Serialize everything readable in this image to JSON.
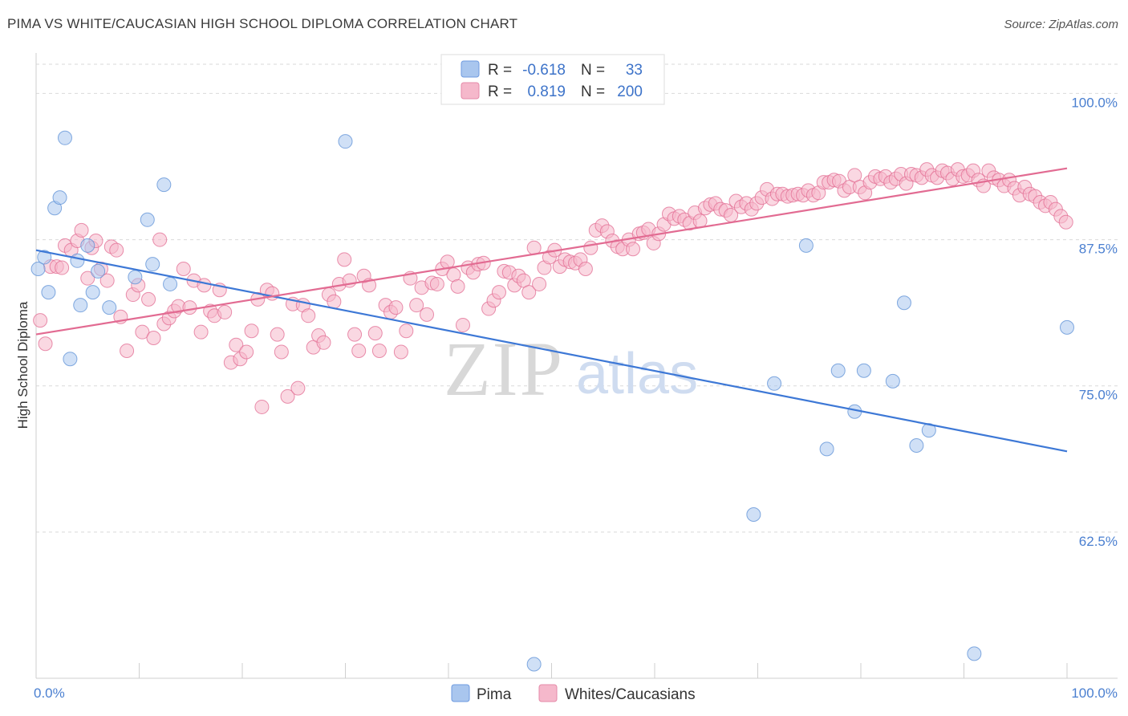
{
  "header": {
    "title": "PIMA VS WHITE/CAUCASIAN HIGH SCHOOL DIPLOMA CORRELATION CHART",
    "source": "Source: ZipAtlas.com"
  },
  "watermark": {
    "zip": "ZIP",
    "atlas": "atlas"
  },
  "legend_top": {
    "rows": [
      {
        "r_label": "R =",
        "r_value": "-0.618",
        "n_label": "N =",
        "n_value": "33",
        "color": "#a9c6ee"
      },
      {
        "r_label": "R =",
        "r_value": "0.819",
        "n_label": "N =",
        "n_value": "200",
        "color": "#f5b8cb"
      }
    ]
  },
  "legend_bottom": {
    "items": [
      {
        "label": "Pima",
        "color": "#a9c6ee"
      },
      {
        "label": "Whites/Caucasians",
        "color": "#f5b8cb"
      }
    ]
  },
  "chart_data": {
    "type": "scatter",
    "title": "PIMA VS WHITE/CAUCASIAN HIGH SCHOOL DIPLOMA CORRELATION CHART",
    "xlabel": "",
    "ylabel": "High School Diploma",
    "xlim": [
      0,
      100
    ],
    "ylim": [
      50,
      102.5
    ],
    "x_tick_labels": [
      "0.0%",
      "100.0%"
    ],
    "y_ticks": [
      62.5,
      75.0,
      87.5,
      100.0
    ],
    "y_tick_labels": [
      "62.5%",
      "75.0%",
      "87.5%",
      "100.0%"
    ],
    "grid": "horizontal dashed",
    "series": [
      {
        "name": "Pima",
        "color": "#5b8fd6",
        "fill": "#a9c6ee",
        "trend": {
          "x": [
            0,
            100
          ],
          "y": [
            86.6,
            69.4
          ]
        },
        "points": [
          [
            0.2,
            85.0
          ],
          [
            0.8,
            86.0
          ],
          [
            1.2,
            83.0
          ],
          [
            1.8,
            90.2
          ],
          [
            2.3,
            91.1
          ],
          [
            2.8,
            96.2
          ],
          [
            3.3,
            77.3
          ],
          [
            4.0,
            85.7
          ],
          [
            4.3,
            81.9
          ],
          [
            5.0,
            87.0
          ],
          [
            5.5,
            83.0
          ],
          [
            6.0,
            84.8
          ],
          [
            7.1,
            81.7
          ],
          [
            9.6,
            84.3
          ],
          [
            10.8,
            89.2
          ],
          [
            11.3,
            85.4
          ],
          [
            12.4,
            92.2
          ],
          [
            13.0,
            83.7
          ],
          [
            30.0,
            95.9
          ],
          [
            48.3,
            51.2
          ],
          [
            69.6,
            64.0
          ],
          [
            71.6,
            75.2
          ],
          [
            74.7,
            87.0
          ],
          [
            76.7,
            69.6
          ],
          [
            77.8,
            76.3
          ],
          [
            79.4,
            72.8
          ],
          [
            80.3,
            76.3
          ],
          [
            83.1,
            75.4
          ],
          [
            84.2,
            82.1
          ],
          [
            85.4,
            69.9
          ],
          [
            86.6,
            71.2
          ],
          [
            91.0,
            52.1
          ],
          [
            100.0,
            80.0
          ]
        ]
      },
      {
        "name": "Whites/Caucasians",
        "color": "#e26b92",
        "fill": "#f5b8cb",
        "trend": {
          "x": [
            0,
            100
          ],
          "y": [
            79.4,
            93.6
          ]
        },
        "points": [
          [
            0.4,
            80.6
          ],
          [
            0.9,
            78.6
          ],
          [
            1.4,
            85.2
          ],
          [
            2.0,
            85.2
          ],
          [
            2.5,
            85.1
          ],
          [
            2.8,
            87.0
          ],
          [
            3.4,
            86.6
          ],
          [
            4.0,
            87.4
          ],
          [
            4.4,
            88.3
          ],
          [
            5.0,
            84.2
          ],
          [
            5.4,
            86.8
          ],
          [
            5.8,
            87.4
          ],
          [
            6.3,
            85.0
          ],
          [
            6.9,
            84.0
          ],
          [
            7.3,
            86.9
          ],
          [
            7.8,
            86.6
          ],
          [
            8.2,
            80.9
          ],
          [
            8.8,
            78.0
          ],
          [
            9.4,
            82.8
          ],
          [
            9.9,
            83.6
          ],
          [
            10.3,
            79.6
          ],
          [
            10.9,
            82.4
          ],
          [
            11.4,
            79.1
          ],
          [
            12.0,
            87.5
          ],
          [
            12.4,
            80.3
          ],
          [
            12.9,
            80.8
          ],
          [
            13.4,
            81.4
          ],
          [
            13.8,
            81.8
          ],
          [
            14.3,
            85.0
          ],
          [
            14.9,
            81.7
          ],
          [
            15.3,
            84.0
          ],
          [
            16.0,
            79.6
          ],
          [
            16.3,
            83.6
          ],
          [
            16.9,
            81.4
          ],
          [
            17.3,
            81.0
          ],
          [
            17.8,
            83.2
          ],
          [
            18.3,
            81.3
          ],
          [
            18.9,
            77.0
          ],
          [
            19.4,
            78.5
          ],
          [
            19.8,
            77.3
          ],
          [
            20.4,
            77.9
          ],
          [
            20.9,
            79.7
          ],
          [
            21.5,
            82.4
          ],
          [
            21.9,
            73.2
          ],
          [
            22.4,
            83.2
          ],
          [
            22.9,
            82.9
          ],
          [
            23.4,
            79.4
          ],
          [
            23.8,
            77.9
          ],
          [
            24.4,
            74.1
          ],
          [
            24.9,
            82.0
          ],
          [
            25.4,
            74.8
          ],
          [
            25.9,
            81.9
          ],
          [
            26.4,
            81.0
          ],
          [
            26.9,
            78.3
          ],
          [
            27.4,
            79.3
          ],
          [
            27.9,
            78.7
          ],
          [
            28.4,
            82.8
          ],
          [
            28.9,
            82.2
          ],
          [
            29.4,
            83.7
          ],
          [
            29.9,
            85.8
          ],
          [
            30.4,
            84.0
          ],
          [
            30.9,
            79.4
          ],
          [
            31.3,
            78.0
          ],
          [
            31.8,
            84.4
          ],
          [
            32.3,
            83.6
          ],
          [
            32.9,
            79.5
          ],
          [
            33.3,
            78.0
          ],
          [
            33.9,
            81.9
          ],
          [
            34.4,
            81.3
          ],
          [
            34.9,
            81.7
          ],
          [
            35.4,
            77.9
          ],
          [
            35.9,
            79.7
          ],
          [
            36.3,
            84.2
          ],
          [
            36.9,
            81.9
          ],
          [
            37.4,
            83.4
          ],
          [
            37.9,
            81.1
          ],
          [
            38.4,
            83.8
          ],
          [
            38.9,
            83.7
          ],
          [
            39.4,
            85.0
          ],
          [
            39.9,
            85.6
          ],
          [
            40.5,
            84.5
          ],
          [
            40.9,
            83.5
          ],
          [
            41.4,
            80.2
          ],
          [
            41.9,
            85.1
          ],
          [
            42.4,
            84.7
          ],
          [
            42.9,
            85.4
          ],
          [
            43.4,
            85.5
          ],
          [
            43.9,
            81.6
          ],
          [
            44.4,
            82.3
          ],
          [
            44.9,
            83.0
          ],
          [
            45.4,
            84.8
          ],
          [
            45.9,
            84.7
          ],
          [
            46.4,
            83.6
          ],
          [
            46.8,
            84.4
          ],
          [
            47.3,
            84.0
          ],
          [
            47.8,
            83.0
          ],
          [
            48.3,
            86.8
          ],
          [
            48.8,
            83.7
          ],
          [
            49.3,
            85.1
          ],
          [
            49.8,
            86.0
          ],
          [
            50.3,
            86.6
          ],
          [
            50.8,
            85.2
          ],
          [
            51.3,
            85.8
          ],
          [
            51.8,
            85.6
          ],
          [
            52.3,
            85.5
          ],
          [
            52.8,
            85.8
          ],
          [
            53.3,
            85.0
          ],
          [
            53.8,
            86.8
          ],
          [
            54.3,
            88.3
          ],
          [
            54.9,
            88.7
          ],
          [
            55.4,
            88.2
          ],
          [
            55.9,
            87.4
          ],
          [
            56.4,
            86.9
          ],
          [
            56.9,
            86.7
          ],
          [
            57.5,
            87.5
          ],
          [
            57.9,
            86.7
          ],
          [
            58.5,
            88.0
          ],
          [
            58.9,
            88.1
          ],
          [
            59.4,
            88.4
          ],
          [
            59.9,
            87.2
          ],
          [
            60.4,
            88.0
          ],
          [
            60.9,
            88.8
          ],
          [
            61.4,
            89.7
          ],
          [
            61.9,
            89.3
          ],
          [
            62.4,
            89.5
          ],
          [
            62.9,
            89.2
          ],
          [
            63.4,
            88.9
          ],
          [
            63.9,
            89.8
          ],
          [
            64.4,
            89.1
          ],
          [
            64.9,
            90.2
          ],
          [
            65.4,
            90.5
          ],
          [
            65.9,
            90.6
          ],
          [
            66.4,
            90.1
          ],
          [
            66.9,
            90.0
          ],
          [
            67.4,
            89.6
          ],
          [
            67.9,
            90.8
          ],
          [
            68.4,
            90.3
          ],
          [
            68.9,
            90.6
          ],
          [
            69.4,
            90.1
          ],
          [
            69.9,
            90.6
          ],
          [
            70.4,
            91.1
          ],
          [
            70.9,
            91.8
          ],
          [
            71.4,
            91.0
          ],
          [
            71.9,
            91.4
          ],
          [
            72.4,
            91.4
          ],
          [
            72.9,
            91.2
          ],
          [
            73.4,
            91.3
          ],
          [
            73.9,
            91.4
          ],
          [
            74.4,
            91.3
          ],
          [
            74.9,
            91.7
          ],
          [
            75.4,
            91.3
          ],
          [
            75.9,
            91.5
          ],
          [
            76.4,
            92.4
          ],
          [
            76.9,
            92.4
          ],
          [
            77.4,
            92.6
          ],
          [
            77.9,
            92.5
          ],
          [
            78.4,
            91.7
          ],
          [
            78.9,
            92.0
          ],
          [
            79.4,
            93.0
          ],
          [
            79.9,
            92.0
          ],
          [
            80.4,
            91.5
          ],
          [
            80.9,
            92.4
          ],
          [
            81.4,
            92.9
          ],
          [
            81.9,
            92.7
          ],
          [
            82.4,
            92.9
          ],
          [
            82.9,
            92.4
          ],
          [
            83.4,
            92.7
          ],
          [
            83.9,
            93.1
          ],
          [
            84.4,
            92.3
          ],
          [
            84.9,
            93.1
          ],
          [
            85.4,
            93.0
          ],
          [
            85.9,
            92.8
          ],
          [
            86.4,
            93.5
          ],
          [
            86.9,
            93.0
          ],
          [
            87.4,
            92.8
          ],
          [
            87.9,
            93.4
          ],
          [
            88.4,
            93.2
          ],
          [
            88.9,
            92.7
          ],
          [
            89.4,
            93.5
          ],
          [
            89.9,
            92.9
          ],
          [
            90.4,
            93.0
          ],
          [
            90.9,
            93.4
          ],
          [
            91.4,
            92.6
          ],
          [
            91.9,
            92.1
          ],
          [
            92.4,
            93.4
          ],
          [
            92.9,
            92.8
          ],
          [
            93.4,
            92.6
          ],
          [
            93.9,
            92.1
          ],
          [
            94.4,
            92.6
          ],
          [
            94.9,
            91.9
          ],
          [
            95.4,
            91.3
          ],
          [
            95.9,
            92.0
          ],
          [
            96.4,
            91.4
          ],
          [
            96.9,
            91.2
          ],
          [
            97.4,
            90.7
          ],
          [
            97.9,
            90.4
          ],
          [
            98.4,
            90.7
          ],
          [
            98.9,
            90.1
          ],
          [
            99.4,
            89.5
          ],
          [
            99.9,
            89.0
          ]
        ]
      }
    ]
  }
}
